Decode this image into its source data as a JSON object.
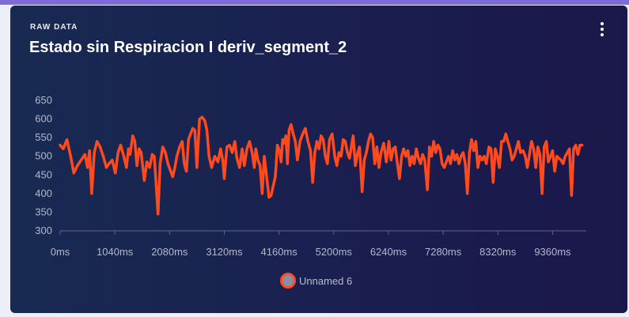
{
  "card": {
    "eyebrow": "RAW DATA",
    "title": "Estado sin Respiracion I deriv_segment_2",
    "menu_icon": "more-vertical-icon"
  },
  "colors": {
    "card_bg": "#1a2050",
    "series": "#ff4a1f",
    "axis_text": "#b3b8cc",
    "top_strip": "#7e6ad9"
  },
  "chart_data": {
    "type": "line",
    "title": "Estado sin Respiracion I deriv_segment_2",
    "xlabel": "",
    "ylabel": "",
    "ylim": [
      300,
      650
    ],
    "xlim": [
      0,
      10000
    ],
    "x_unit": "ms",
    "y_ticks": [
      300,
      350,
      400,
      450,
      500,
      550,
      600,
      650
    ],
    "x_ticks": [
      0,
      1040,
      2080,
      3120,
      4160,
      5200,
      6240,
      7280,
      8320,
      9360
    ],
    "x_tick_labels": [
      "0ms",
      "1040ms",
      "2080ms",
      "3120ms",
      "4160ms",
      "5200ms",
      "6240ms",
      "7280ms",
      "8320ms",
      "9360ms"
    ],
    "grid": false,
    "legend": "bottom-center",
    "series": [
      {
        "name": "Unnamed 6",
        "color": "#ff4a1f",
        "points": [
          [
            0,
            530
          ],
          [
            60,
            520
          ],
          [
            130,
            545
          ],
          [
            200,
            500
          ],
          [
            260,
            455
          ],
          [
            330,
            475
          ],
          [
            400,
            490
          ],
          [
            470,
            505
          ],
          [
            520,
            470
          ],
          [
            560,
            515
          ],
          [
            600,
            400
          ],
          [
            650,
            510
          ],
          [
            700,
            540
          ],
          [
            760,
            525
          ],
          [
            820,
            500
          ],
          [
            880,
            470
          ],
          [
            930,
            480
          ],
          [
            990,
            490
          ],
          [
            1050,
            455
          ],
          [
            1100,
            510
          ],
          [
            1150,
            530
          ],
          [
            1210,
            500
          ],
          [
            1260,
            470
          ],
          [
            1300,
            520
          ],
          [
            1330,
            505
          ],
          [
            1380,
            555
          ],
          [
            1420,
            540
          ],
          [
            1460,
            475
          ],
          [
            1500,
            520
          ],
          [
            1540,
            510
          ],
          [
            1600,
            435
          ],
          [
            1650,
            485
          ],
          [
            1700,
            470
          ],
          [
            1750,
            505
          ],
          [
            1790,
            500
          ],
          [
            1820,
            435
          ],
          [
            1860,
            345
          ],
          [
            1900,
            480
          ],
          [
            1950,
            525
          ],
          [
            2000,
            510
          ],
          [
            2050,
            480
          ],
          [
            2100,
            460
          ],
          [
            2140,
            445
          ],
          [
            2180,
            470
          ],
          [
            2220,
            500
          ],
          [
            2270,
            525
          ],
          [
            2320,
            540
          ],
          [
            2360,
            480
          ],
          [
            2400,
            460
          ],
          [
            2440,
            545
          ],
          [
            2480,
            560
          ],
          [
            2520,
            575
          ],
          [
            2560,
            570
          ],
          [
            2600,
            470
          ],
          [
            2650,
            600
          ],
          [
            2700,
            605
          ],
          [
            2750,
            595
          ],
          [
            2790,
            570
          ],
          [
            2830,
            500
          ],
          [
            2880,
            470
          ],
          [
            2940,
            500
          ],
          [
            3000,
            485
          ],
          [
            3050,
            520
          ],
          [
            3090,
            490
          ],
          [
            3120,
            440
          ],
          [
            3170,
            525
          ],
          [
            3220,
            530
          ],
          [
            3270,
            510
          ],
          [
            3320,
            540
          ],
          [
            3360,
            495
          ],
          [
            3410,
            470
          ],
          [
            3460,
            520
          ],
          [
            3500,
            475
          ],
          [
            3550,
            520
          ],
          [
            3600,
            540
          ],
          [
            3650,
            510
          ],
          [
            3690,
            470
          ],
          [
            3720,
            520
          ],
          [
            3760,
            490
          ],
          [
            3800,
            475
          ],
          [
            3840,
            400
          ],
          [
            3880,
            500
          ],
          [
            3930,
            440
          ],
          [
            3970,
            390
          ],
          [
            4010,
            395
          ],
          [
            4050,
            420
          ],
          [
            4090,
            445
          ],
          [
            4130,
            530
          ],
          [
            4170,
            515
          ],
          [
            4200,
            485
          ],
          [
            4230,
            545
          ],
          [
            4260,
            535
          ],
          [
            4290,
            555
          ],
          [
            4320,
            480
          ],
          [
            4350,
            570
          ],
          [
            4390,
            585
          ],
          [
            4430,
            560
          ],
          [
            4470,
            540
          ],
          [
            4510,
            490
          ],
          [
            4560,
            540
          ],
          [
            4610,
            560
          ],
          [
            4660,
            575
          ],
          [
            4710,
            540
          ],
          [
            4760,
            515
          ],
          [
            4800,
            430
          ],
          [
            4840,
            510
          ],
          [
            4880,
            540
          ],
          [
            4920,
            520
          ],
          [
            4960,
            555
          ],
          [
            5000,
            545
          ],
          [
            5040,
            500
          ],
          [
            5080,
            480
          ],
          [
            5120,
            545
          ],
          [
            5170,
            560
          ],
          [
            5220,
            500
          ],
          [
            5260,
            475
          ],
          [
            5300,
            510
          ],
          [
            5340,
            500
          ],
          [
            5380,
            545
          ],
          [
            5420,
            540
          ],
          [
            5460,
            510
          ],
          [
            5500,
            495
          ],
          [
            5540,
            530
          ],
          [
            5570,
            555
          ],
          [
            5610,
            475
          ],
          [
            5650,
            505
          ],
          [
            5690,
            525
          ],
          [
            5740,
            405
          ],
          [
            5780,
            490
          ],
          [
            5820,
            510
          ],
          [
            5860,
            540
          ],
          [
            5900,
            560
          ],
          [
            5940,
            550
          ],
          [
            5980,
            480
          ],
          [
            6020,
            525
          ],
          [
            6060,
            470
          ],
          [
            6100,
            510
          ],
          [
            6150,
            535
          ],
          [
            6200,
            485
          ],
          [
            6250,
            540
          ],
          [
            6290,
            490
          ],
          [
            6330,
            520
          ],
          [
            6370,
            525
          ],
          [
            6410,
            480
          ],
          [
            6450,
            440
          ],
          [
            6490,
            500
          ],
          [
            6530,
            520
          ],
          [
            6570,
            500
          ],
          [
            6610,
            515
          ],
          [
            6650,
            475
          ],
          [
            6690,
            500
          ],
          [
            6730,
            480
          ],
          [
            6770,
            520
          ],
          [
            6810,
            495
          ],
          [
            6850,
            480
          ],
          [
            6890,
            505
          ],
          [
            6930,
            490
          ],
          [
            6980,
            410
          ],
          [
            7020,
            525
          ],
          [
            7060,
            500
          ],
          [
            7100,
            540
          ],
          [
            7140,
            510
          ],
          [
            7180,
            530
          ],
          [
            7220,
            520
          ],
          [
            7260,
            480
          ],
          [
            7300,
            470
          ],
          [
            7340,
            485
          ],
          [
            7380,
            500
          ],
          [
            7420,
            480
          ],
          [
            7460,
            515
          ],
          [
            7500,
            490
          ],
          [
            7540,
            505
          ],
          [
            7580,
            480
          ],
          [
            7620,
            500
          ],
          [
            7660,
            510
          ],
          [
            7700,
            480
          ],
          [
            7740,
            400
          ],
          [
            7780,
            510
          ],
          [
            7820,
            545
          ],
          [
            7860,
            515
          ],
          [
            7900,
            540
          ],
          [
            7940,
            470
          ],
          [
            7980,
            500
          ],
          [
            8020,
            490
          ],
          [
            8060,
            500
          ],
          [
            8100,
            480
          ],
          [
            8150,
            525
          ],
          [
            8190,
            520
          ],
          [
            8230,
            430
          ],
          [
            8270,
            520
          ],
          [
            8310,
            500
          ],
          [
            8350,
            470
          ],
          [
            8390,
            540
          ],
          [
            8430,
            540
          ],
          [
            8470,
            560
          ],
          [
            8510,
            540
          ],
          [
            8550,
            520
          ],
          [
            8590,
            490
          ],
          [
            8630,
            500
          ],
          [
            8670,
            520
          ],
          [
            8710,
            540
          ],
          [
            8750,
            510
          ],
          [
            8800,
            515
          ],
          [
            8840,
            500
          ],
          [
            8880,
            470
          ],
          [
            8920,
            505
          ],
          [
            8960,
            540
          ],
          [
            9000,
            520
          ],
          [
            9040,
            470
          ],
          [
            9080,
            525
          ],
          [
            9120,
            505
          ],
          [
            9160,
            400
          ],
          [
            9200,
            525
          ],
          [
            9240,
            540
          ],
          [
            9280,
            485
          ],
          [
            9320,
            500
          ],
          [
            9360,
            515
          ],
          [
            9400,
            460
          ],
          [
            9440,
            500
          ],
          [
            9480,
            495
          ],
          [
            9520,
            490
          ],
          [
            9560,
            480
          ],
          [
            9600,
            500
          ],
          [
            9640,
            510
          ],
          [
            9680,
            520
          ],
          [
            9720,
            395
          ],
          [
            9760,
            520
          ],
          [
            9800,
            530
          ],
          [
            9840,
            505
          ],
          [
            9880,
            530
          ],
          [
            9920,
            530
          ]
        ]
      }
    ]
  }
}
